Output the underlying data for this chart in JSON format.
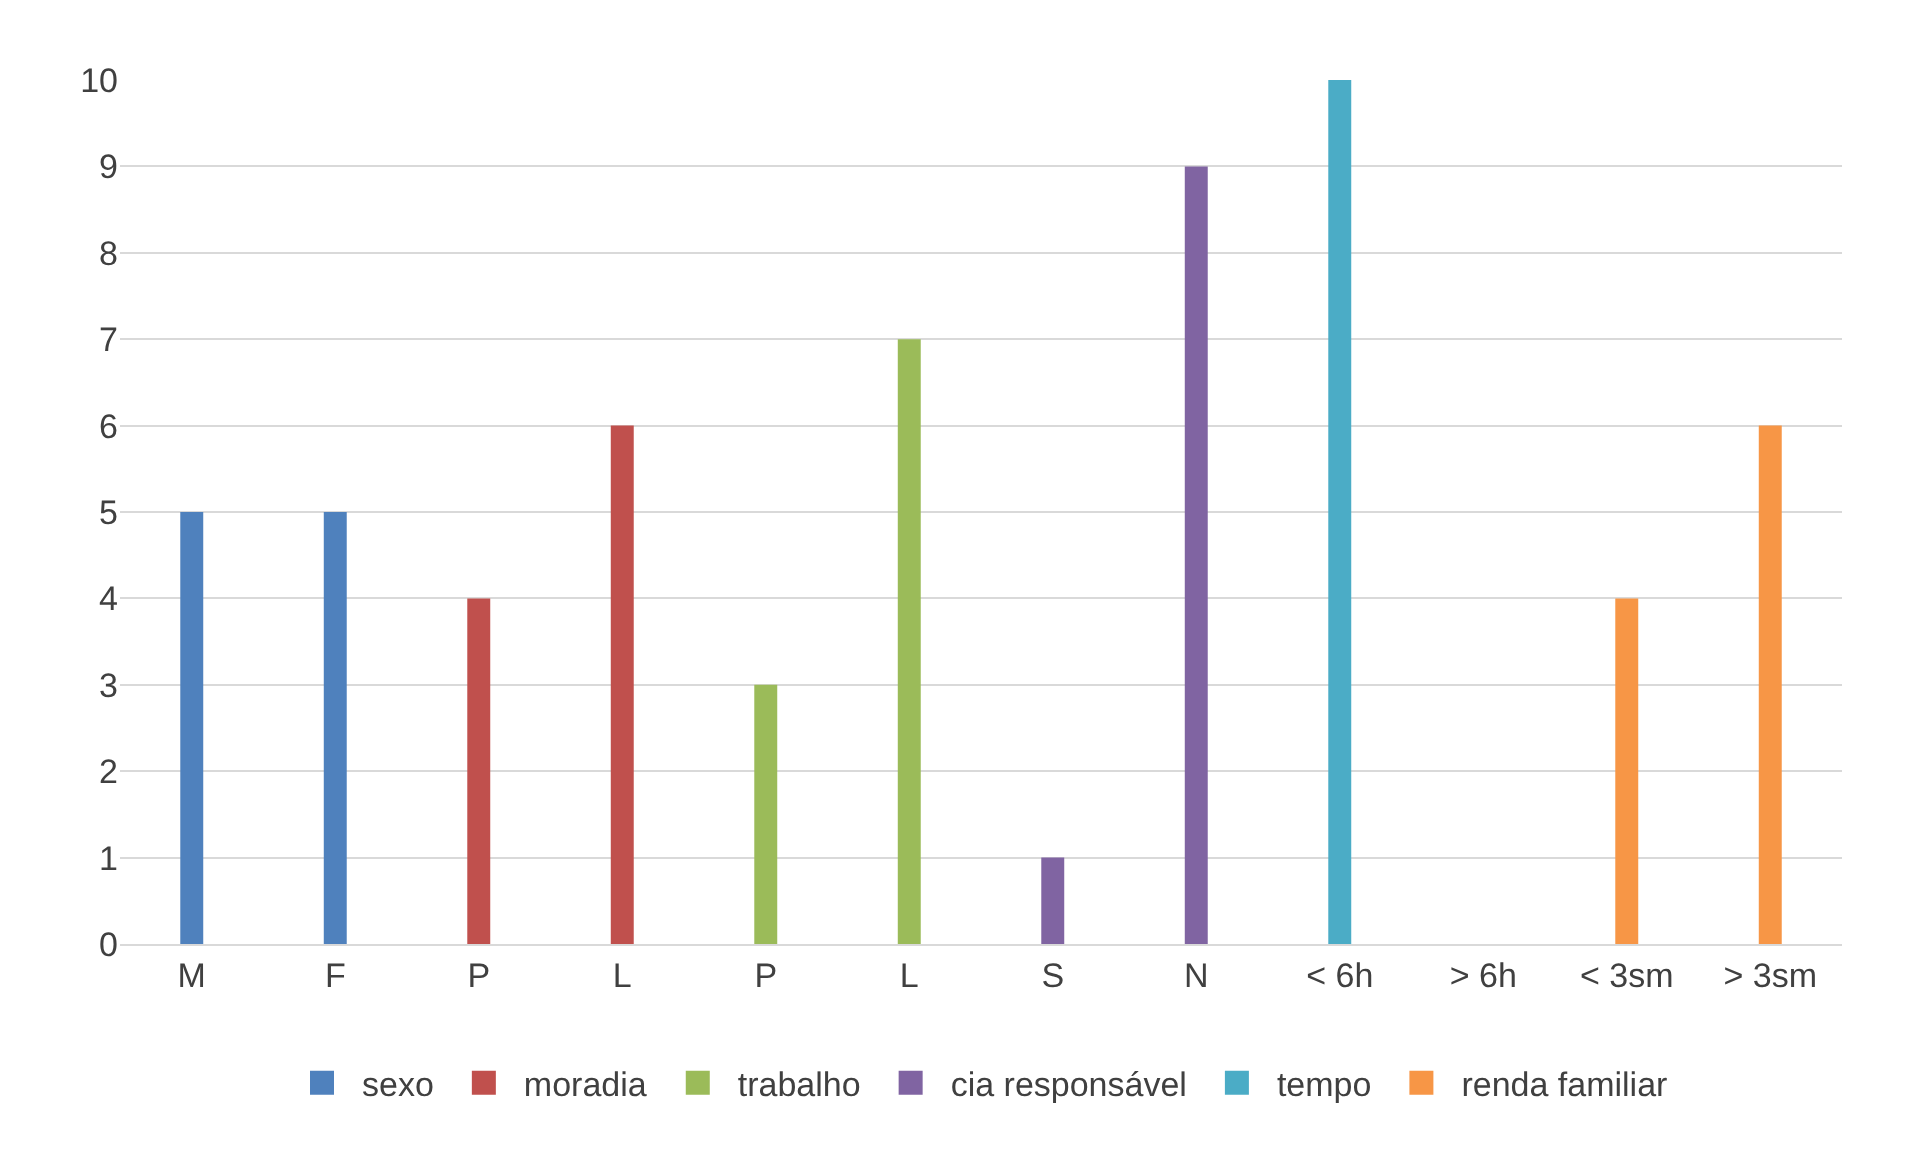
{
  "chart_data": {
    "type": "bar",
    "categories": [
      "M",
      "F",
      "P",
      "L",
      "P",
      "L",
      "S",
      "N",
      "< 6h",
      "> 6h",
      "< 3sm",
      "> 3sm"
    ],
    "series": [
      {
        "name": "sexo",
        "color": "#4f81bd",
        "values": [
          5,
          5,
          null,
          null,
          null,
          null,
          null,
          null,
          null,
          null,
          null,
          null
        ]
      },
      {
        "name": "moradia",
        "color": "#c0504d",
        "values": [
          null,
          null,
          4,
          6,
          null,
          null,
          null,
          null,
          null,
          null,
          null,
          null
        ]
      },
      {
        "name": "trabalho",
        "color": "#9bbb59",
        "values": [
          null,
          null,
          null,
          null,
          3,
          7,
          null,
          null,
          null,
          null,
          null,
          null
        ]
      },
      {
        "name": "cia responsável",
        "color": "#8064a2",
        "values": [
          null,
          null,
          null,
          null,
          null,
          null,
          1,
          9,
          null,
          null,
          null,
          null
        ]
      },
      {
        "name": "tempo",
        "color": "#4bacc6",
        "values": [
          null,
          null,
          null,
          null,
          null,
          null,
          null,
          null,
          10,
          0,
          null,
          null
        ]
      },
      {
        "name": "renda familiar",
        "color": "#f79646",
        "values": [
          null,
          null,
          null,
          null,
          null,
          null,
          null,
          null,
          null,
          null,
          4,
          6
        ]
      }
    ],
    "ylim": [
      0,
      10
    ],
    "yticks": [
      0,
      1,
      2,
      3,
      4,
      5,
      6,
      7,
      8,
      9,
      10
    ],
    "grid": "y",
    "legend": "bottom"
  }
}
